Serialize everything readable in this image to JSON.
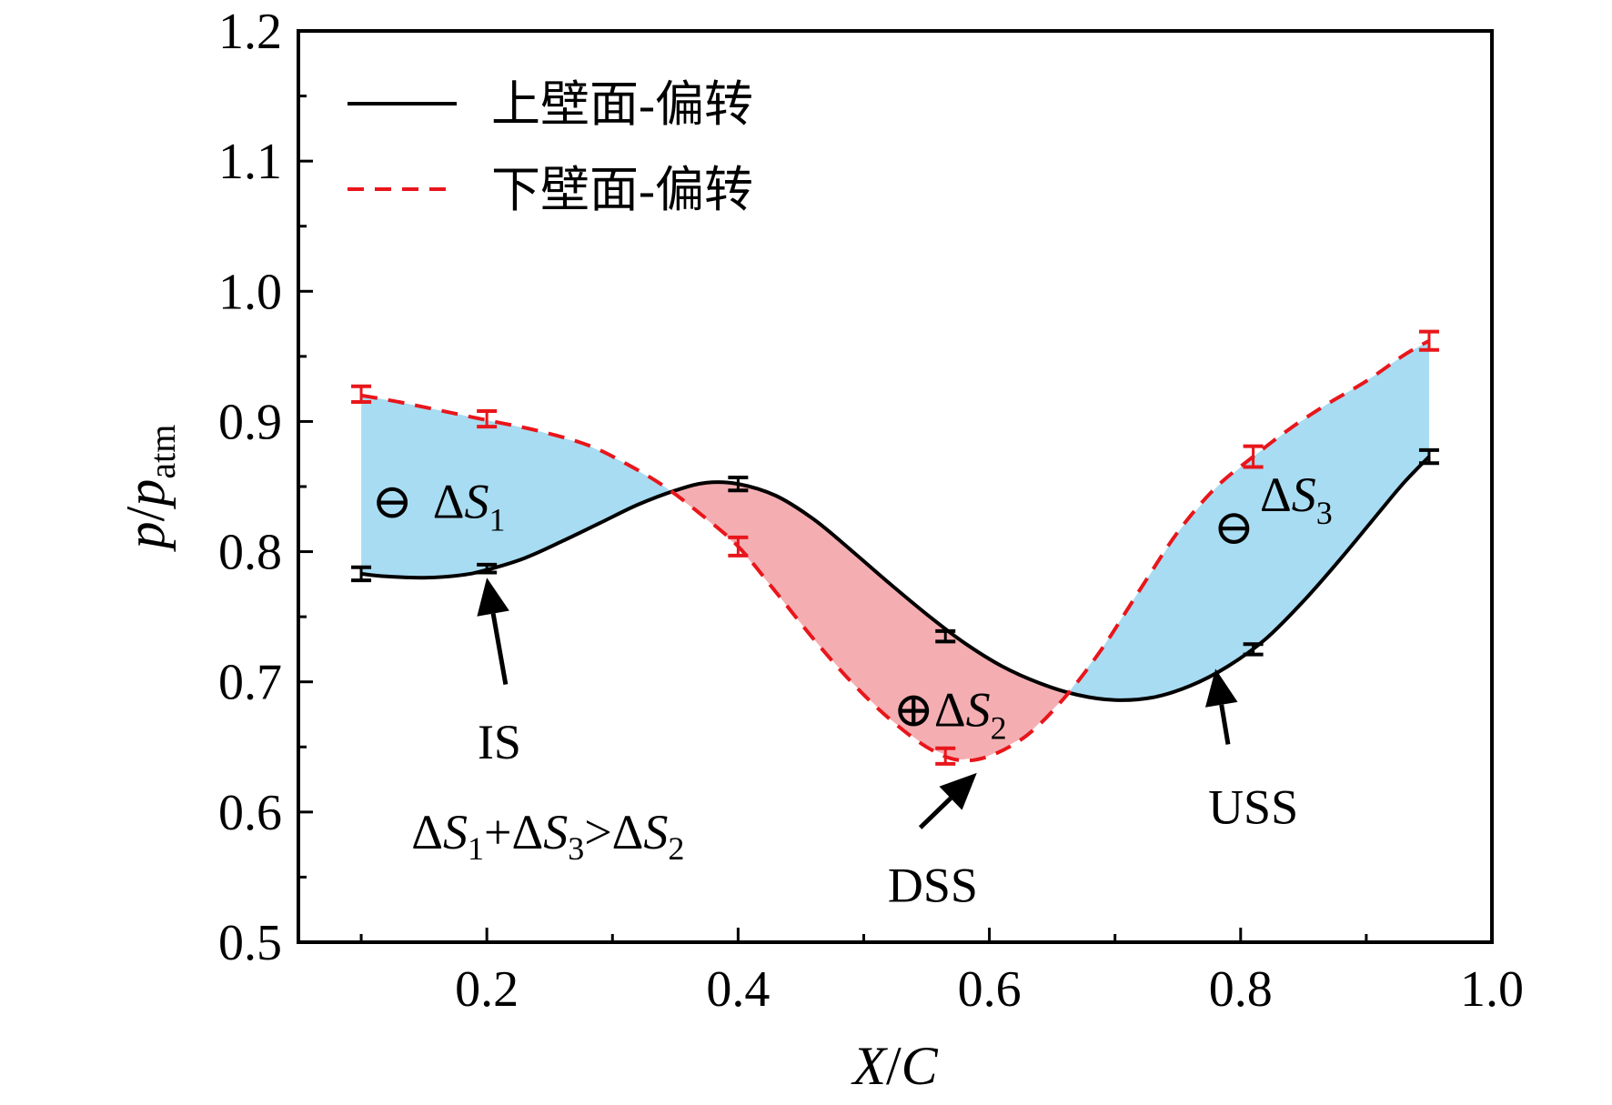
{
  "chart_data": {
    "type": "line",
    "xlabel": {
      "main": "X",
      "sep": "/",
      "tail": "C"
    },
    "ylabel": {
      "main": "p",
      "sep": "/",
      "tail": "p",
      "sub": "atm"
    },
    "xlim": [
      0.05,
      1.0
    ],
    "ylim": [
      0.5,
      1.2
    ],
    "xticks": [
      {
        "v": 0.2,
        "label": "0.2"
      },
      {
        "v": 0.4,
        "label": "0.4"
      },
      {
        "v": 0.6,
        "label": "0.6"
      },
      {
        "v": 0.8,
        "label": "0.8"
      },
      {
        "v": 1.0,
        "label": "1.0"
      }
    ],
    "yticks": [
      {
        "v": 0.5,
        "label": "0.5"
      },
      {
        "v": 0.6,
        "label": "0.6"
      },
      {
        "v": 0.7,
        "label": "0.7"
      },
      {
        "v": 0.8,
        "label": "0.8"
      },
      {
        "v": 0.9,
        "label": "0.9"
      },
      {
        "v": 1.0,
        "label": "1.0"
      },
      {
        "v": 1.1,
        "label": "1.1"
      },
      {
        "v": 1.2,
        "label": "1.2"
      }
    ],
    "series": [
      {
        "name": "上壁面-偏转",
        "color": "#000000",
        "dash": "solid",
        "x": [
          0.1,
          0.2,
          0.4,
          0.565,
          0.81,
          0.95
        ],
        "y": [
          0.783,
          0.787,
          0.852,
          0.735,
          0.725,
          0.873
        ],
        "err": [
          0.005,
          0.003,
          0.005,
          0.004,
          0.004,
          0.005
        ],
        "curve": [
          [
            0.1,
            0.783
          ],
          [
            0.12,
            0.781
          ],
          [
            0.15,
            0.78
          ],
          [
            0.18,
            0.782
          ],
          [
            0.2,
            0.786
          ],
          [
            0.23,
            0.795
          ],
          [
            0.26,
            0.808
          ],
          [
            0.29,
            0.822
          ],
          [
            0.32,
            0.836
          ],
          [
            0.35,
            0.847
          ],
          [
            0.375,
            0.853
          ],
          [
            0.4,
            0.852
          ],
          [
            0.43,
            0.843
          ],
          [
            0.46,
            0.825
          ],
          [
            0.49,
            0.801
          ],
          [
            0.52,
            0.776
          ],
          [
            0.55,
            0.752
          ],
          [
            0.58,
            0.73
          ],
          [
            0.61,
            0.712
          ],
          [
            0.64,
            0.699
          ],
          [
            0.67,
            0.69
          ],
          [
            0.7,
            0.686
          ],
          [
            0.73,
            0.688
          ],
          [
            0.76,
            0.697
          ],
          [
            0.79,
            0.712
          ],
          [
            0.82,
            0.733
          ],
          [
            0.85,
            0.762
          ],
          [
            0.88,
            0.795
          ],
          [
            0.91,
            0.83
          ],
          [
            0.93,
            0.853
          ],
          [
            0.95,
            0.873
          ]
        ]
      },
      {
        "name": "下壁面-偏转",
        "color": "#e8161b",
        "dash": "dashed",
        "x": [
          0.1,
          0.2,
          0.4,
          0.565,
          0.81,
          0.95
        ],
        "y": [
          0.921,
          0.902,
          0.804,
          0.643,
          0.873,
          0.962
        ],
        "err": [
          0.006,
          0.006,
          0.007,
          0.006,
          0.008,
          0.007
        ],
        "curve": [
          [
            0.1,
            0.92
          ],
          [
            0.13,
            0.915
          ],
          [
            0.16,
            0.909
          ],
          [
            0.2,
            0.901
          ],
          [
            0.24,
            0.893
          ],
          [
            0.28,
            0.882
          ],
          [
            0.31,
            0.868
          ],
          [
            0.34,
            0.851
          ],
          [
            0.37,
            0.829
          ],
          [
            0.4,
            0.804
          ],
          [
            0.43,
            0.769
          ],
          [
            0.46,
            0.733
          ],
          [
            0.49,
            0.7
          ],
          [
            0.52,
            0.672
          ],
          [
            0.55,
            0.65
          ],
          [
            0.575,
            0.64
          ],
          [
            0.6,
            0.643
          ],
          [
            0.63,
            0.659
          ],
          [
            0.66,
            0.688
          ],
          [
            0.69,
            0.726
          ],
          [
            0.72,
            0.771
          ],
          [
            0.75,
            0.815
          ],
          [
            0.78,
            0.849
          ],
          [
            0.81,
            0.873
          ],
          [
            0.84,
            0.895
          ],
          [
            0.87,
            0.914
          ],
          [
            0.9,
            0.931
          ],
          [
            0.93,
            0.951
          ],
          [
            0.95,
            0.962
          ]
        ]
      }
    ],
    "regions": [
      {
        "name": "ΔS1",
        "sign": "⊖",
        "color": "#a8dcf2",
        "from": 0.1,
        "to": 0.345
      },
      {
        "name": "ΔS2",
        "sign": "⊕",
        "color": "#f4aeb2",
        "from": 0.345,
        "to": 0.662
      },
      {
        "name": "ΔS3",
        "sign": "⊖",
        "color": "#a8dcf2",
        "from": 0.662,
        "to": 0.95
      }
    ],
    "annotations": [
      {
        "id": "is",
        "text": "IS",
        "x": 0.21,
        "y": 0.655,
        "arrow_from": [
          0.215,
          0.698
        ],
        "arrow_to": [
          0.2,
          0.78
        ]
      },
      {
        "id": "dss",
        "text": "DSS",
        "x": 0.555,
        "y": 0.545,
        "arrow_from": [
          0.545,
          0.588
        ],
        "arrow_to": [
          0.59,
          0.63
        ]
      },
      {
        "id": "uss",
        "text": "USS",
        "x": 0.81,
        "y": 0.605,
        "arrow_from": [
          0.79,
          0.652
        ],
        "arrow_to": [
          0.78,
          0.71
        ]
      }
    ],
    "region_labels": [
      {
        "id": "s1",
        "sign": "⊖",
        "delta": "Δ",
        "letter": "S",
        "sub": "1",
        "x": 0.13,
        "y": 0.84
      },
      {
        "id": "s2",
        "sign": "⊕",
        "delta": "Δ",
        "letter": "S",
        "sub": "2",
        "x": 0.545,
        "y": 0.68
      },
      {
        "id": "s3",
        "sign": "⊖",
        "delta": "Δ",
        "letter": "S",
        "sub": "3",
        "x": 0.8,
        "y": 0.82
      }
    ],
    "inequality": {
      "parts": [
        "Δ",
        "S",
        "1",
        "+Δ",
        "S",
        "3",
        ">Δ",
        "S",
        "2"
      ],
      "x": 0.14,
      "y": 0.6
    },
    "legend": {
      "position": "top-left"
    },
    "grid": false
  }
}
